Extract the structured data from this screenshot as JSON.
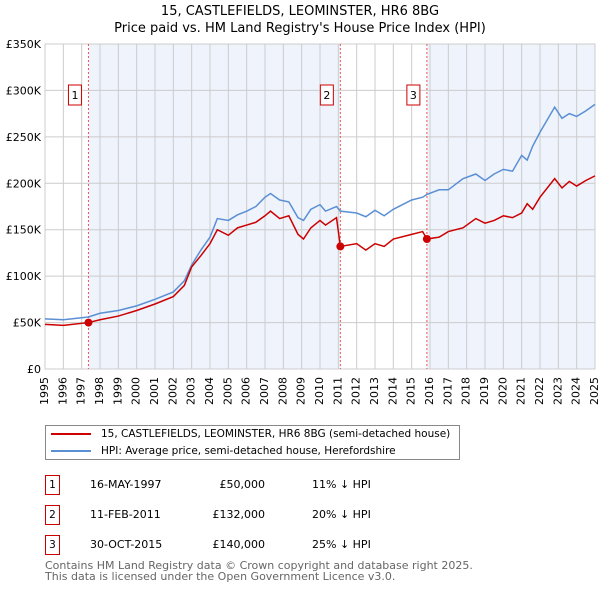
{
  "title": "15, CASTLEFIELDS, LEOMINSTER, HR6 8BG",
  "subtitle": "Price paid vs. HM Land Registry's House Price Index (HPI)",
  "chart_data": {
    "type": "line",
    "title": "15, CASTLEFIELDS, LEOMINSTER, HR6 8BG",
    "subtitle": "Price paid vs. HM Land Registry's House Price Index (HPI)",
    "xlim": [
      1995,
      2025
    ],
    "ylim": [
      0,
      350000
    ],
    "yticks": [
      0,
      50000,
      100000,
      150000,
      200000,
      250000,
      300000,
      350000
    ],
    "ytick_labels": [
      "£0",
      "£50K",
      "£100K",
      "£150K",
      "£200K",
      "£250K",
      "£300K",
      "£350K"
    ],
    "xticks": [
      "1995",
      "1996",
      "1997",
      "1998",
      "1999",
      "2000",
      "2001",
      "2002",
      "2003",
      "2004",
      "2005",
      "2006",
      "2007",
      "2008",
      "2009",
      "2010",
      "2011",
      "2012",
      "2013",
      "2014",
      "2015",
      "2016",
      "2017",
      "2018",
      "2019",
      "2020",
      "2021",
      "2022",
      "2023",
      "2024",
      "2025"
    ],
    "grid": true,
    "legend_placement": "below",
    "series": [
      {
        "name": "15, CASTLEFIELDS, LEOMINSTER, HR6 8BG (semi-detached house)",
        "color": "#cc0000",
        "x": [
          1995,
          1996,
          1997.37,
          1998,
          1999,
          2000,
          2001,
          2002,
          2002.6,
          2003,
          2003.5,
          2004,
          2004.4,
          2005,
          2005.5,
          2006,
          2006.5,
          2007,
          2007.3,
          2007.8,
          2008.3,
          2008.8,
          2009.1,
          2009.5,
          2010,
          2010.3,
          2010.9,
          2011.11,
          2012,
          2012.5,
          2013,
          2013.5,
          2014,
          2015,
          2015.6,
          2015.83,
          2016.5,
          2017,
          2017.8,
          2018.5,
          2019,
          2019.5,
          2020,
          2020.5,
          2021,
          2021.3,
          2021.6,
          2022,
          2022.8,
          2023.2,
          2023.6,
          2024,
          2024.5,
          2025
        ],
        "y": [
          48000,
          47000,
          50000,
          53000,
          57000,
          63000,
          70000,
          78000,
          90000,
          110000,
          122000,
          135000,
          150000,
          144000,
          152000,
          155000,
          158000,
          165000,
          170000,
          162000,
          165000,
          145000,
          140000,
          152000,
          160000,
          155000,
          163000,
          132000,
          135000,
          128000,
          135000,
          132000,
          140000,
          145000,
          148000,
          140000,
          142000,
          148000,
          152000,
          162000,
          157000,
          160000,
          165000,
          163000,
          168000,
          178000,
          172000,
          185000,
          205000,
          195000,
          202000,
          197000,
          203000,
          208000
        ]
      },
      {
        "name": "HPI: Average price, semi-detached house, Herefordshire",
        "color": "#5b8fd4",
        "x": [
          1995,
          1996,
          1997.37,
          1998,
          1999,
          2000,
          2001,
          2002,
          2002.6,
          2003,
          2003.5,
          2004,
          2004.4,
          2005,
          2005.5,
          2006,
          2006.5,
          2007,
          2007.3,
          2007.8,
          2008.3,
          2008.8,
          2009.1,
          2009.5,
          2010,
          2010.3,
          2010.9,
          2011.11,
          2012,
          2012.5,
          2013,
          2013.5,
          2014,
          2015,
          2015.6,
          2015.83,
          2016.5,
          2017,
          2017.8,
          2018.5,
          2019,
          2019.5,
          2020,
          2020.5,
          2021,
          2021.3,
          2021.6,
          2022,
          2022.8,
          2023.2,
          2023.6,
          2024,
          2024.5,
          2025
        ],
        "y": [
          54000,
          53000,
          56000,
          60000,
          63000,
          68000,
          75000,
          83000,
          95000,
          112000,
          128000,
          142000,
          162000,
          160000,
          166000,
          170000,
          175000,
          185000,
          189000,
          182000,
          180000,
          163000,
          160000,
          172000,
          177000,
          170000,
          175000,
          170000,
          168000,
          164000,
          171000,
          165000,
          172000,
          182000,
          185000,
          188000,
          193000,
          193000,
          205000,
          210000,
          203000,
          210000,
          215000,
          213000,
          230000,
          225000,
          240000,
          255000,
          282000,
          270000,
          275000,
          272000,
          278000,
          285000
        ]
      }
    ],
    "annotations": [
      {
        "label": "1",
        "x": 1997.37,
        "y": 50000,
        "date": "16-MAY-1997",
        "price": "£50,000",
        "hpi": "11% ↓ HPI"
      },
      {
        "label": "2",
        "x": 2011.11,
        "y": 132000,
        "date": "11-FEB-2011",
        "price": "£132,000",
        "hpi": "20% ↓ HPI"
      },
      {
        "label": "3",
        "x": 2015.83,
        "y": 140000,
        "date": "30-OCT-2015",
        "price": "£140,000",
        "hpi": "25% ↓ HPI"
      }
    ]
  },
  "footer": [
    "Contains HM Land Registry data © Crown copyright and database right 2025.",
    "This data is licensed under the Open Government Licence v3.0."
  ]
}
